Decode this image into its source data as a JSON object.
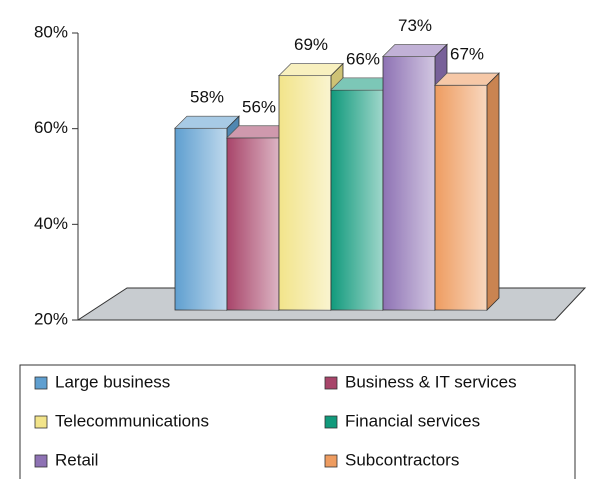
{
  "chart_data": {
    "type": "bar3d",
    "categories": [
      "Large business",
      "Business & IT services",
      "Telecommunications",
      "Financial services",
      "Retail",
      "Subcontractors"
    ],
    "values": [
      58,
      56,
      69,
      66,
      73,
      67
    ],
    "value_labels": [
      "58%",
      "56%",
      "69%",
      "66%",
      "73%",
      "67%"
    ],
    "colors": [
      "#5f9fd0",
      "#a8456a",
      "#f2e48a",
      "#119a7c",
      "#8e72b4",
      "#ee9c60"
    ],
    "ylim": [
      20,
      80
    ],
    "yticks": [
      {
        "value": 20,
        "label": "20%"
      },
      {
        "value": 40,
        "label": "40%"
      },
      {
        "value": 60,
        "label": "60%"
      },
      {
        "value": 80,
        "label": "80%"
      }
    ],
    "legend": "bottom"
  }
}
